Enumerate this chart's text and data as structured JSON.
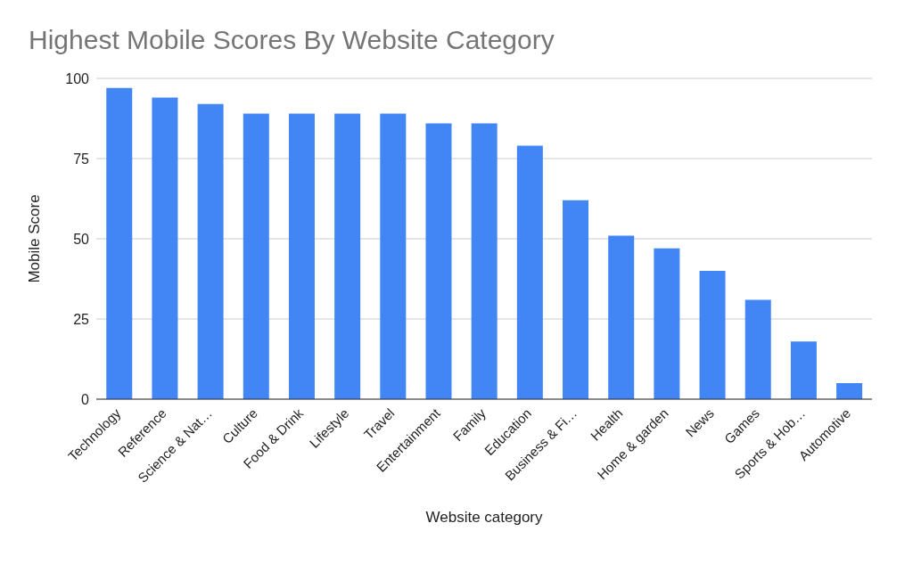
{
  "chart_data": {
    "type": "bar",
    "title": "Highest Mobile Scores By Website Category",
    "xlabel": "Website category",
    "ylabel": "Mobile Score",
    "categories": [
      "Technology",
      "Reference",
      "Science & Nat…",
      "Culture",
      "Food & Drink",
      "Lifestyle",
      "Travel",
      "Entertainment",
      "Family",
      "Education",
      "Business & Fi…",
      "Health",
      "Home & garden",
      "News",
      "Games",
      "Sports & Hob…",
      "Automotive"
    ],
    "values": [
      97,
      94,
      92,
      89,
      89,
      89,
      89,
      86,
      86,
      79,
      62,
      51,
      47,
      40,
      31,
      18,
      5
    ],
    "color": "#4285f4",
    "ylim": [
      0,
      100
    ],
    "yticks": [
      0,
      25,
      50,
      75,
      100
    ],
    "grid": "y"
  }
}
